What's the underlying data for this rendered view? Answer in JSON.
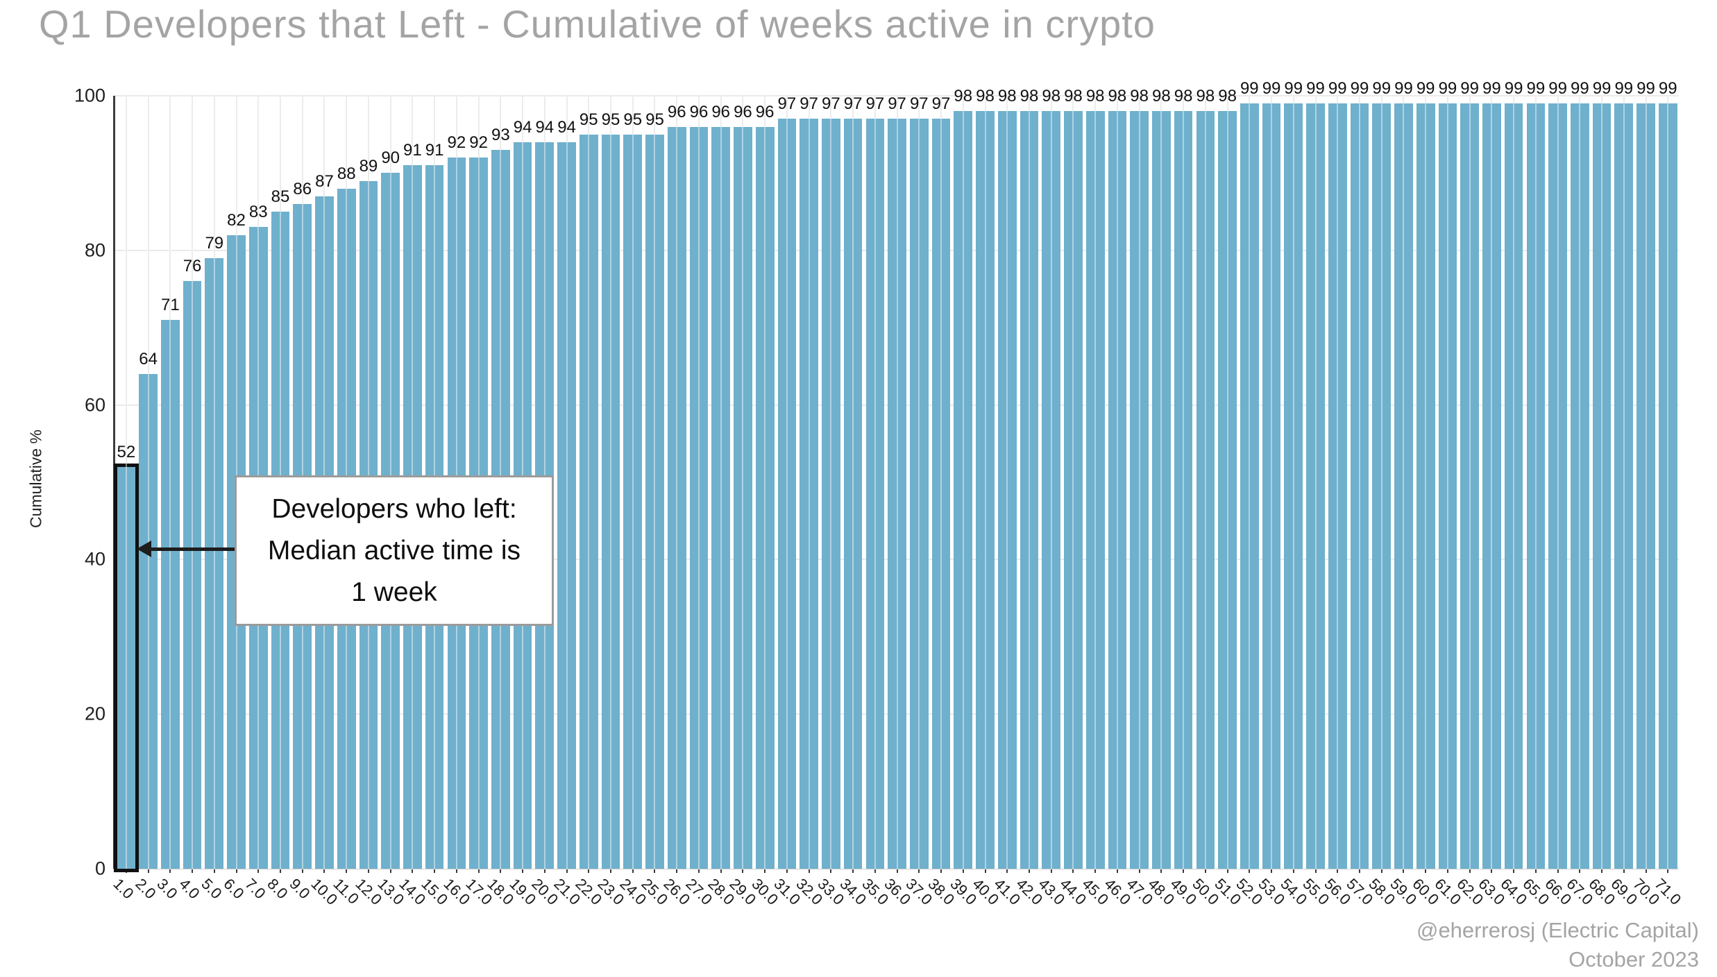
{
  "title": "Q1 Developers that Left - Cumulative of weeks active in crypto",
  "attribution": {
    "line1": "@eherrerosj (Electric Capital)",
    "line2": "October 2023"
  },
  "annotation": {
    "line1": "Developers who left:",
    "line2": "Median active time is",
    "line3": "1 week"
  },
  "colors": {
    "bar": "#6fb0cd",
    "highlight_outline": "#101010",
    "title_gray": "#a4a4a4",
    "grid": "#dcdcdc"
  },
  "chart_data": {
    "type": "bar",
    "title": "Q1 Developers that Left - Cumulative of weeks active in crypto",
    "xlabel": "",
    "ylabel": "Cumulative %",
    "ylim": [
      0,
      100
    ],
    "yticks": [
      0,
      20,
      40,
      60,
      80,
      100
    ],
    "grid": true,
    "legend": "none",
    "highlight_index": 0,
    "categories": [
      "1.0",
      "2.0",
      "3.0",
      "4.0",
      "5.0",
      "6.0",
      "7.0",
      "8.0",
      "9.0",
      "10.0",
      "11.0",
      "12.0",
      "13.0",
      "14.0",
      "15.0",
      "16.0",
      "17.0",
      "18.0",
      "19.0",
      "20.0",
      "21.0",
      "22.0",
      "23.0",
      "24.0",
      "25.0",
      "26.0",
      "27.0",
      "28.0",
      "29.0",
      "30.0",
      "31.0",
      "32.0",
      "33.0",
      "34.0",
      "35.0",
      "36.0",
      "37.0",
      "38.0",
      "39.0",
      "40.0",
      "41.0",
      "42.0",
      "43.0",
      "44.0",
      "45.0",
      "46.0",
      "47.0",
      "48.0",
      "49.0",
      "50.0",
      "51.0",
      "52.0",
      "53.0",
      "54.0",
      "55.0",
      "56.0",
      "57.0",
      "58.0",
      "59.0",
      "60.0",
      "61.0",
      "62.0",
      "63.0",
      "64.0",
      "65.0",
      "66.0",
      "67.0",
      "68.0",
      "69.0",
      "70.0",
      "71.0"
    ],
    "values": [
      52,
      64,
      71,
      76,
      79,
      82,
      83,
      85,
      86,
      87,
      88,
      89,
      90,
      91,
      91,
      92,
      92,
      93,
      94,
      94,
      94,
      95,
      95,
      95,
      95,
      96,
      96,
      96,
      96,
      96,
      97,
      97,
      97,
      97,
      97,
      97,
      97,
      97,
      98,
      98,
      98,
      98,
      98,
      98,
      98,
      98,
      98,
      98,
      98,
      98,
      98,
      99,
      99,
      99,
      99,
      99,
      99,
      99,
      99,
      99,
      99,
      99,
      99,
      99,
      99,
      99,
      99,
      99,
      99,
      99,
      99
    ]
  }
}
